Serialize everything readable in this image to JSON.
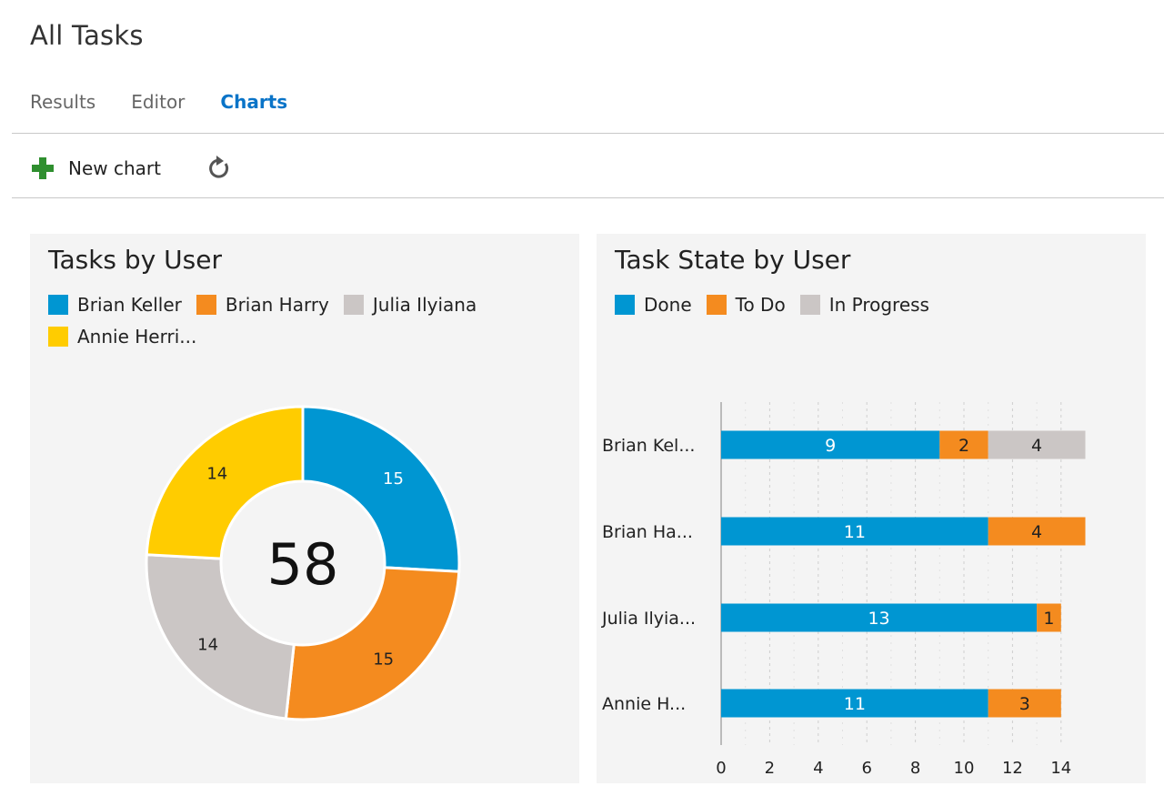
{
  "page": {
    "title": "All Tasks"
  },
  "tabs": [
    {
      "label": "Results",
      "active": false
    },
    {
      "label": "Editor",
      "active": false
    },
    {
      "label": "Charts",
      "active": true
    }
  ],
  "toolbar": {
    "new_chart_label": "New chart",
    "new_chart_icon": "plus-icon",
    "refresh_icon": "refresh-icon"
  },
  "colors": {
    "blue": "#0096d2",
    "orange": "#f48b1f",
    "gray": "#cbc6c5",
    "yellow": "#ffcc00",
    "accent": "#0a74c8"
  },
  "chart_data": [
    {
      "type": "pie",
      "title": "Tasks by User",
      "total_label": "58",
      "legend": [
        {
          "label": "Brian Keller",
          "color": "#0096d2"
        },
        {
          "label": "Brian Harry",
          "color": "#f48b1f"
        },
        {
          "label": "Julia Ilyiana",
          "color": "#cbc6c5"
        },
        {
          "label": "Annie Herri...",
          "color": "#ffcc00"
        }
      ],
      "slices": [
        {
          "name": "Brian Keller",
          "value": 15,
          "color": "#0096d2"
        },
        {
          "name": "Brian Harry",
          "value": 15,
          "color": "#f48b1f"
        },
        {
          "name": "Julia Ilyiana",
          "value": 14,
          "color": "#cbc6c5"
        },
        {
          "name": "Annie Herri...",
          "value": 14,
          "color": "#ffcc00"
        }
      ]
    },
    {
      "type": "bar",
      "orientation": "horizontal",
      "stacked": true,
      "title": "Task State by User",
      "legend": [
        {
          "label": "Done",
          "color": "#0096d2"
        },
        {
          "label": "To Do",
          "color": "#f48b1f"
        },
        {
          "label": "In Progress",
          "color": "#cbc6c5"
        }
      ],
      "categories": [
        "Brian Kel...",
        "Brian Ha...",
        "Julia Ilyia...",
        "Annie H..."
      ],
      "series": [
        {
          "name": "Done",
          "color": "#0096d2",
          "values": [
            9,
            11,
            13,
            11
          ]
        },
        {
          "name": "To Do",
          "color": "#f48b1f",
          "values": [
            2,
            4,
            1,
            3
          ]
        },
        {
          "name": "In Progress",
          "color": "#cbc6c5",
          "values": [
            4,
            0,
            0,
            0
          ]
        }
      ],
      "xlim": [
        0,
        15
      ],
      "xticks": [
        0,
        2,
        4,
        6,
        8,
        10,
        12,
        14
      ],
      "grid": true
    }
  ]
}
